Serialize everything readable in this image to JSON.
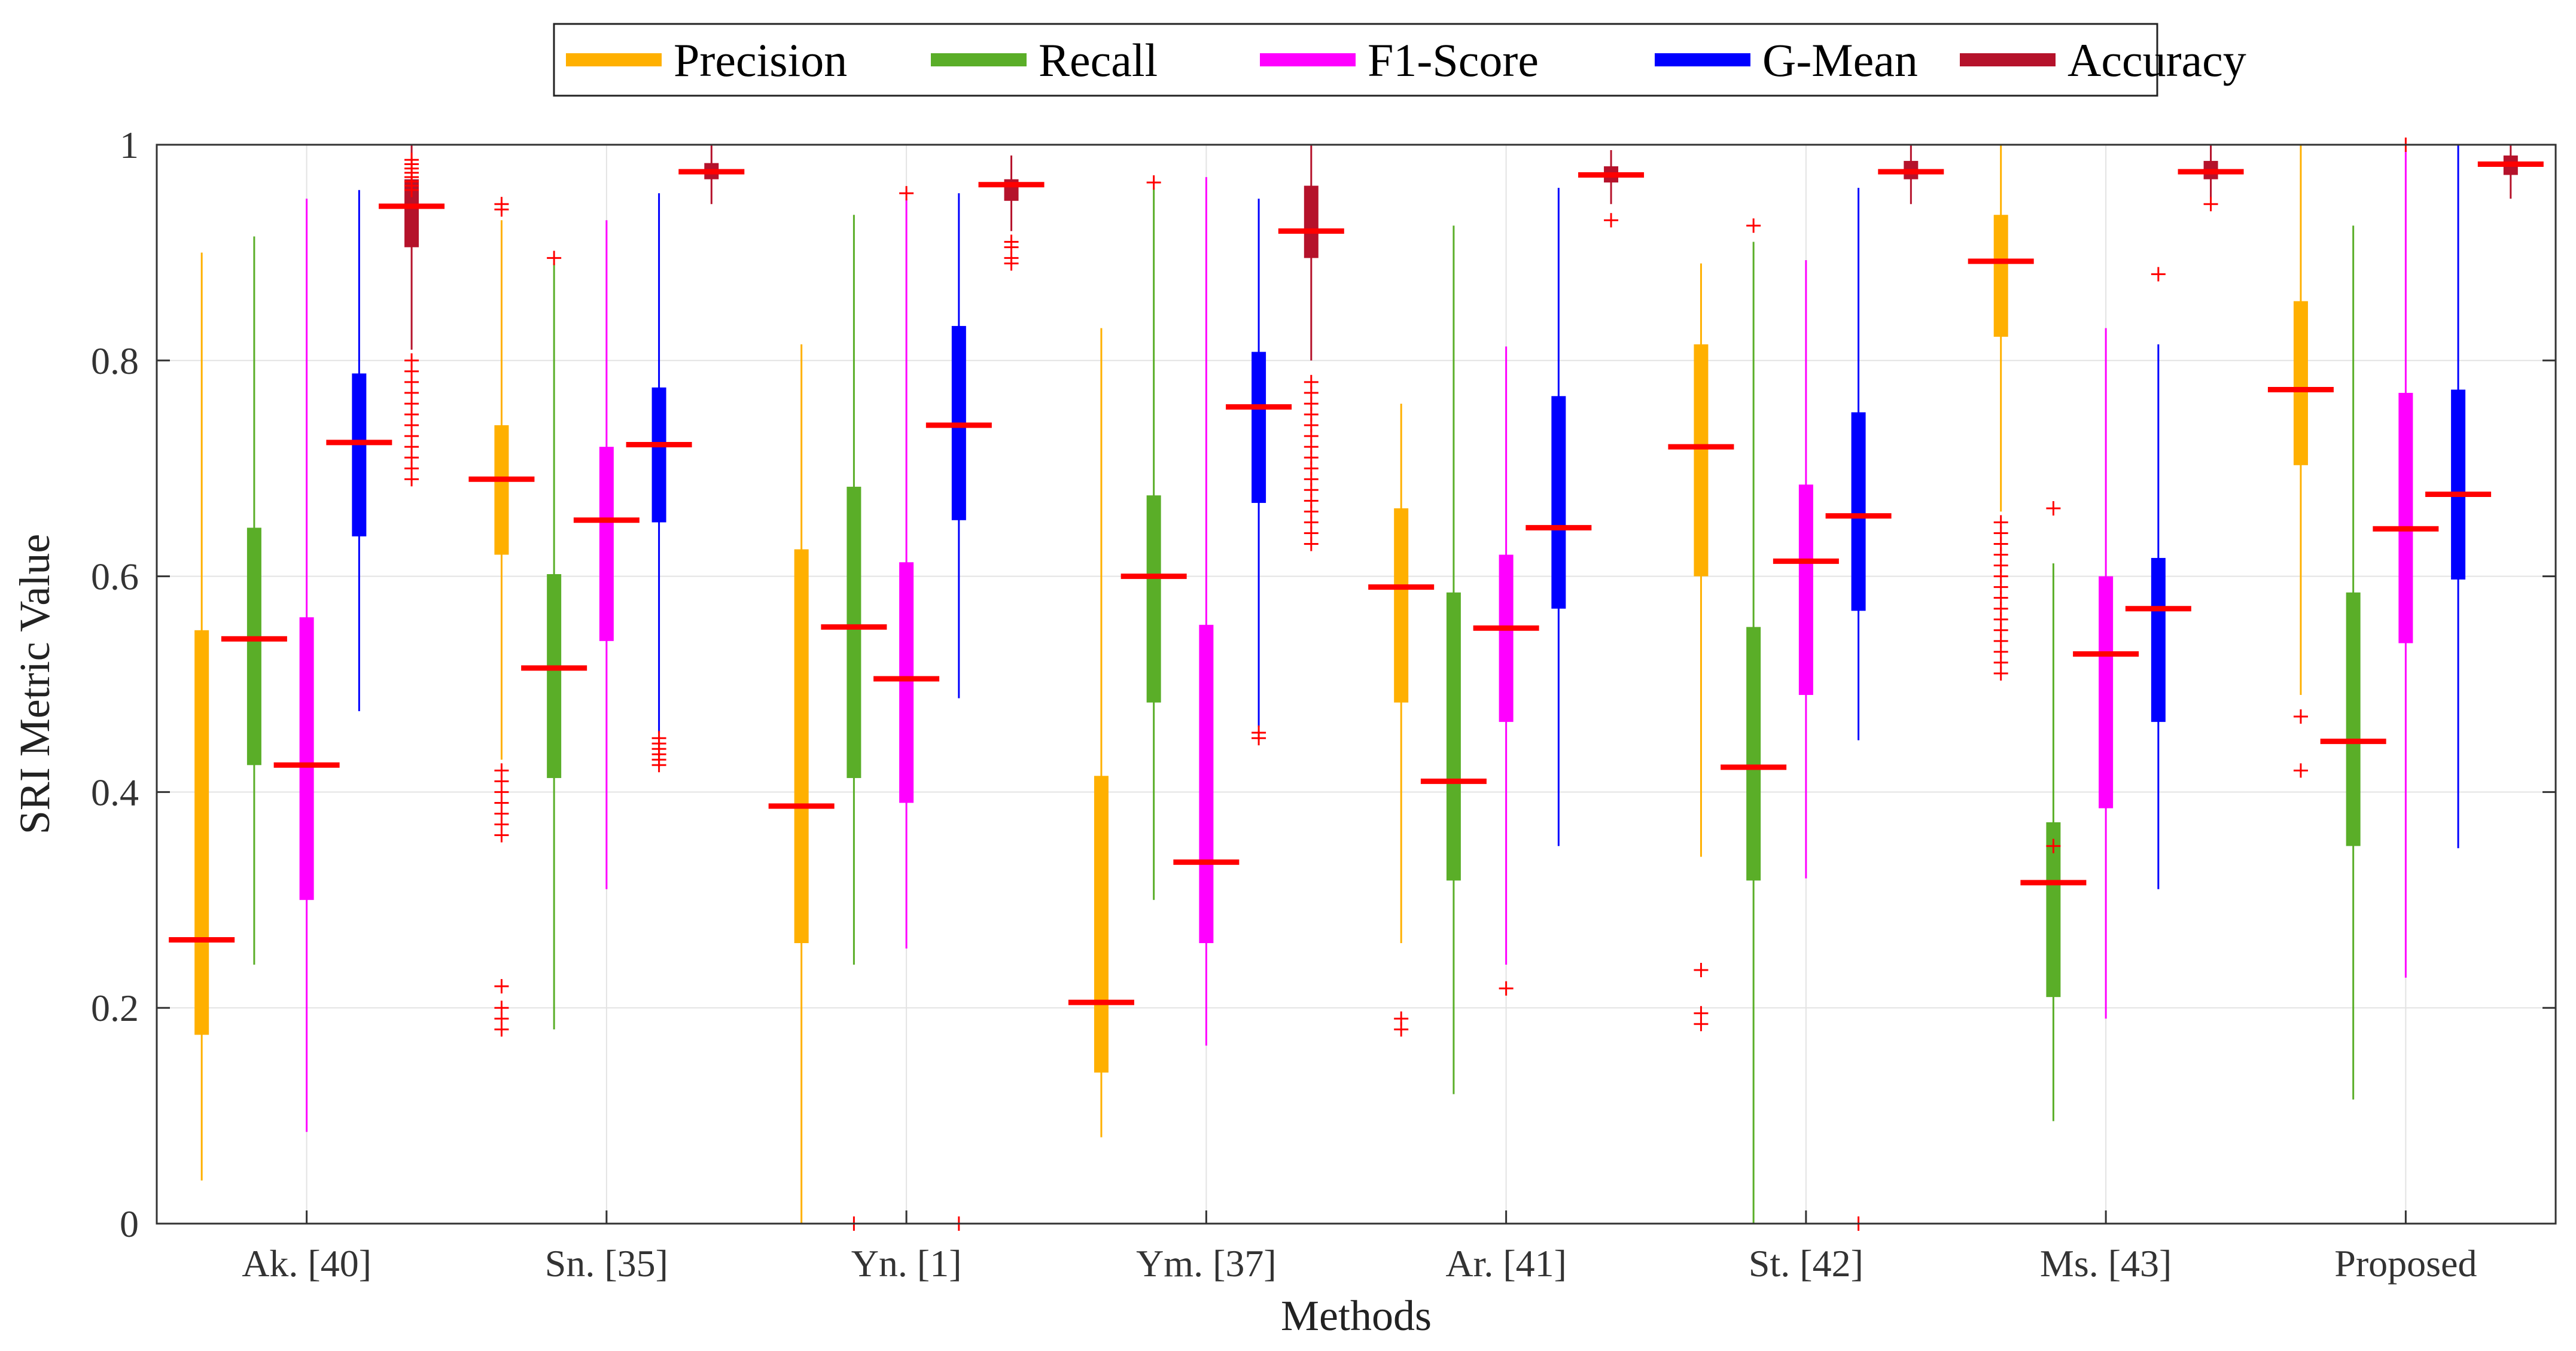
{
  "chart_data": {
    "type": "boxplot",
    "title": "",
    "xlabel": "Methods",
    "ylabel": "SRI Metric Value",
    "ylim": [
      0,
      1
    ],
    "yticks": [
      "0",
      "0.2",
      "0.4",
      "0.6",
      "0.8",
      "1"
    ],
    "grid": true,
    "legend_position": "top-center",
    "categories": [
      "Ak. [40]",
      "Sn. [35]",
      "Yn. [1]",
      "Ym. [37]",
      "Ar. [41]",
      "St. [42]",
      "Ms. [43]",
      "Proposed"
    ],
    "series": [
      {
        "name": "Precision",
        "color": "#FFB000",
        "boxes": [
          {
            "min": 0.04,
            "q1": 0.175,
            "median": 0.263,
            "q3": 0.55,
            "max": 0.9,
            "outliers": []
          },
          {
            "min": 0.43,
            "q1": 0.62,
            "median": 0.69,
            "q3": 0.74,
            "max": 0.93,
            "outliers": [
              0.18,
              0.19,
              0.2,
              0.22,
              0.36,
              0.37,
              0.38,
              0.39,
              0.4,
              0.41,
              0.42,
              0.94,
              0.945
            ]
          },
          {
            "min": 0.0,
            "q1": 0.26,
            "median": 0.387,
            "q3": 0.625,
            "max": 0.815,
            "outliers": []
          },
          {
            "min": 0.08,
            "q1": 0.14,
            "median": 0.205,
            "q3": 0.415,
            "max": 0.83,
            "outliers": []
          },
          {
            "min": 0.26,
            "q1": 0.483,
            "median": 0.59,
            "q3": 0.663,
            "max": 0.76,
            "outliers": [
              0.18,
              0.19
            ]
          },
          {
            "min": 0.34,
            "q1": 0.6,
            "median": 0.72,
            "q3": 0.815,
            "max": 0.89,
            "outliers": [
              0.185,
              0.195,
              0.235
            ]
          },
          {
            "min": 0.66,
            "q1": 0.822,
            "median": 0.892,
            "q3": 0.935,
            "max": 1.0,
            "outliers": [
              0.51,
              0.52,
              0.53,
              0.54,
              0.55,
              0.56,
              0.57,
              0.58,
              0.59,
              0.6,
              0.61,
              0.62,
              0.63,
              0.64,
              0.65
            ]
          },
          {
            "min": 0.49,
            "q1": 0.703,
            "median": 0.773,
            "q3": 0.855,
            "max": 1.0,
            "outliers": [
              0.42,
              0.47
            ]
          }
        ]
      },
      {
        "name": "Recall",
        "color": "#5AAE28",
        "boxes": [
          {
            "min": 0.24,
            "q1": 0.425,
            "median": 0.542,
            "q3": 0.645,
            "max": 0.915,
            "outliers": []
          },
          {
            "min": 0.18,
            "q1": 0.413,
            "median": 0.515,
            "q3": 0.602,
            "max": 0.89,
            "outliers": [
              0.895
            ]
          },
          {
            "min": 0.24,
            "q1": 0.413,
            "median": 0.553,
            "q3": 0.683,
            "max": 0.935,
            "outliers": [
              0.0
            ]
          },
          {
            "min": 0.3,
            "q1": 0.483,
            "median": 0.6,
            "q3": 0.675,
            "max": 0.96,
            "outliers": [
              0.965
            ]
          },
          {
            "min": 0.12,
            "q1": 0.318,
            "median": 0.41,
            "q3": 0.585,
            "max": 0.925,
            "outliers": []
          },
          {
            "min": 0.0,
            "q1": 0.318,
            "median": 0.423,
            "q3": 0.553,
            "max": 0.91,
            "outliers": [
              0.925
            ]
          },
          {
            "min": 0.095,
            "q1": 0.21,
            "median": 0.316,
            "q3": 0.372,
            "max": 0.612,
            "outliers": [
              0.35,
              0.663
            ]
          },
          {
            "min": 0.115,
            "q1": 0.35,
            "median": 0.447,
            "q3": 0.585,
            "max": 0.925,
            "outliers": []
          }
        ]
      },
      {
        "name": "F1-Score",
        "color": "#FF00FF",
        "boxes": [
          {
            "min": 0.085,
            "q1": 0.3,
            "median": 0.425,
            "q3": 0.562,
            "max": 0.95,
            "outliers": []
          },
          {
            "min": 0.31,
            "q1": 0.54,
            "median": 0.652,
            "q3": 0.72,
            "max": 0.93,
            "outliers": []
          },
          {
            "min": 0.255,
            "q1": 0.39,
            "median": 0.505,
            "q3": 0.613,
            "max": 0.95,
            "outliers": [
              0.955
            ]
          },
          {
            "min": 0.165,
            "q1": 0.26,
            "median": 0.335,
            "q3": 0.555,
            "max": 0.97,
            "outliers": []
          },
          {
            "min": 0.24,
            "q1": 0.465,
            "median": 0.552,
            "q3": 0.62,
            "max": 0.813,
            "outliers": [
              0.218
            ]
          },
          {
            "min": 0.32,
            "q1": 0.49,
            "median": 0.614,
            "q3": 0.685,
            "max": 0.893,
            "outliers": []
          },
          {
            "min": 0.19,
            "q1": 0.385,
            "median": 0.528,
            "q3": 0.6,
            "max": 0.83,
            "outliers": []
          },
          {
            "min": 0.228,
            "q1": 0.538,
            "median": 0.644,
            "q3": 0.77,
            "max": 0.995,
            "outliers": [
              1.0
            ]
          }
        ]
      },
      {
        "name": "G-Mean",
        "color": "#0000FF",
        "boxes": [
          {
            "min": 0.475,
            "q1": 0.637,
            "median": 0.724,
            "q3": 0.788,
            "max": 0.958,
            "outliers": []
          },
          {
            "min": 0.455,
            "q1": 0.65,
            "median": 0.722,
            "q3": 0.775,
            "max": 0.955,
            "outliers": [
              0.425,
              0.43,
              0.435,
              0.44,
              0.445,
              0.45
            ]
          },
          {
            "min": 0.487,
            "q1": 0.652,
            "median": 0.74,
            "q3": 0.832,
            "max": 0.955,
            "outliers": [
              0.0
            ]
          },
          {
            "min": 0.46,
            "q1": 0.668,
            "median": 0.757,
            "q3": 0.808,
            "max": 0.95,
            "outliers": [
              0.45,
              0.455
            ]
          },
          {
            "min": 0.35,
            "q1": 0.57,
            "median": 0.645,
            "q3": 0.767,
            "max": 0.96,
            "outliers": []
          },
          {
            "min": 0.448,
            "q1": 0.568,
            "median": 0.656,
            "q3": 0.752,
            "max": 0.96,
            "outliers": [
              0.0
            ]
          },
          {
            "min": 0.31,
            "q1": 0.465,
            "median": 0.57,
            "q3": 0.617,
            "max": 0.815,
            "outliers": [
              0.88
            ]
          },
          {
            "min": 0.348,
            "q1": 0.597,
            "median": 0.676,
            "q3": 0.773,
            "max": 1.0,
            "outliers": []
          }
        ]
      },
      {
        "name": "Accuracy",
        "color": "#B5122B",
        "boxes": [
          {
            "min": 0.81,
            "q1": 0.905,
            "median": 0.943,
            "q3": 0.968,
            "max": 1.0,
            "outliers": [
              0.69,
              0.7,
              0.71,
              0.72,
              0.73,
              0.74,
              0.75,
              0.76,
              0.77,
              0.78,
              0.79,
              0.8,
              0.958,
              0.962,
              0.966,
              0.97,
              0.974,
              0.978,
              0.982,
              0.986
            ]
          },
          {
            "min": 0.945,
            "q1": 0.968,
            "median": 0.975,
            "q3": 0.983,
            "max": 1.0,
            "outliers": []
          },
          {
            "min": 0.92,
            "q1": 0.948,
            "median": 0.963,
            "q3": 0.968,
            "max": 0.99,
            "outliers": [
              0.89,
              0.895,
              0.905,
              0.91
            ]
          },
          {
            "min": 0.8,
            "q1": 0.895,
            "median": 0.92,
            "q3": 0.962,
            "max": 1.0,
            "outliers": [
              0.63,
              0.64,
              0.65,
              0.66,
              0.67,
              0.68,
              0.69,
              0.7,
              0.71,
              0.72,
              0.73,
              0.74,
              0.75,
              0.76,
              0.77,
              0.78
            ]
          },
          {
            "min": 0.945,
            "q1": 0.965,
            "median": 0.972,
            "q3": 0.98,
            "max": 0.995,
            "outliers": [
              0.93
            ]
          },
          {
            "min": 0.945,
            "q1": 0.968,
            "median": 0.975,
            "q3": 0.985,
            "max": 1.0,
            "outliers": []
          },
          {
            "min": 0.95,
            "q1": 0.968,
            "median": 0.975,
            "q3": 0.985,
            "max": 1.0,
            "outliers": [
              0.945
            ]
          },
          {
            "min": 0.95,
            "q1": 0.972,
            "median": 0.982,
            "q3": 0.99,
            "max": 1.0,
            "outliers": []
          }
        ]
      }
    ],
    "median_color": "#FF0000",
    "outlier_color": "#FF0000"
  }
}
